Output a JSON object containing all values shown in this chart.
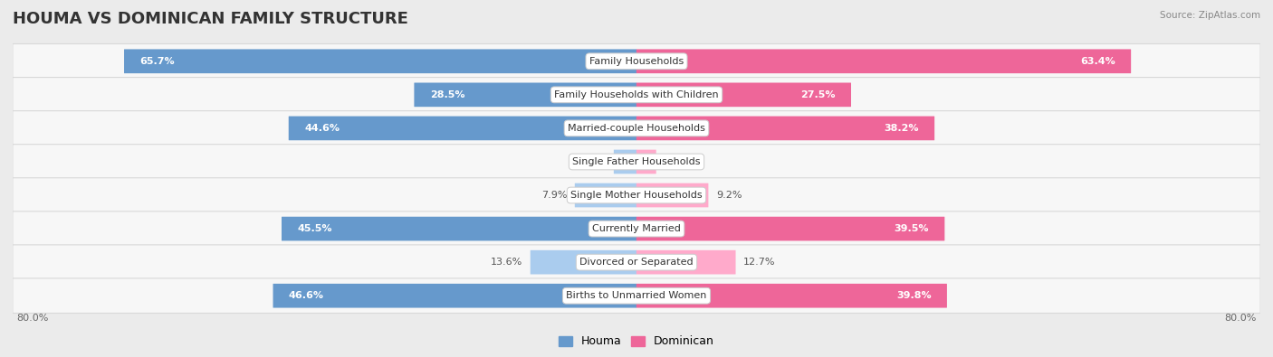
{
  "title": "HOUMA VS DOMINICAN FAMILY STRUCTURE",
  "source": "Source: ZipAtlas.com",
  "categories": [
    "Family Households",
    "Family Households with Children",
    "Married-couple Households",
    "Single Father Households",
    "Single Mother Households",
    "Currently Married",
    "Divorced or Separated",
    "Births to Unmarried Women"
  ],
  "houma_values": [
    65.7,
    28.5,
    44.6,
    2.9,
    7.9,
    45.5,
    13.6,
    46.6
  ],
  "dominican_values": [
    63.4,
    27.5,
    38.2,
    2.5,
    9.2,
    39.5,
    12.7,
    39.8
  ],
  "houma_color_strong": "#6699cc",
  "houma_color_light": "#aaccee",
  "dominican_color_strong": "#ee6699",
  "dominican_color_light": "#ffaacb",
  "background_color": "#ebebeb",
  "row_bg_color": "#f7f7f7",
  "row_border_color": "#d8d8d8",
  "x_min": -80.0,
  "x_max": 80.0,
  "axis_label_left": "80.0%",
  "axis_label_right": "80.0%",
  "legend_houma": "Houma",
  "legend_dominican": "Dominican",
  "title_fontsize": 13,
  "label_fontsize": 8,
  "value_fontsize": 8,
  "strong_threshold": 20.0
}
